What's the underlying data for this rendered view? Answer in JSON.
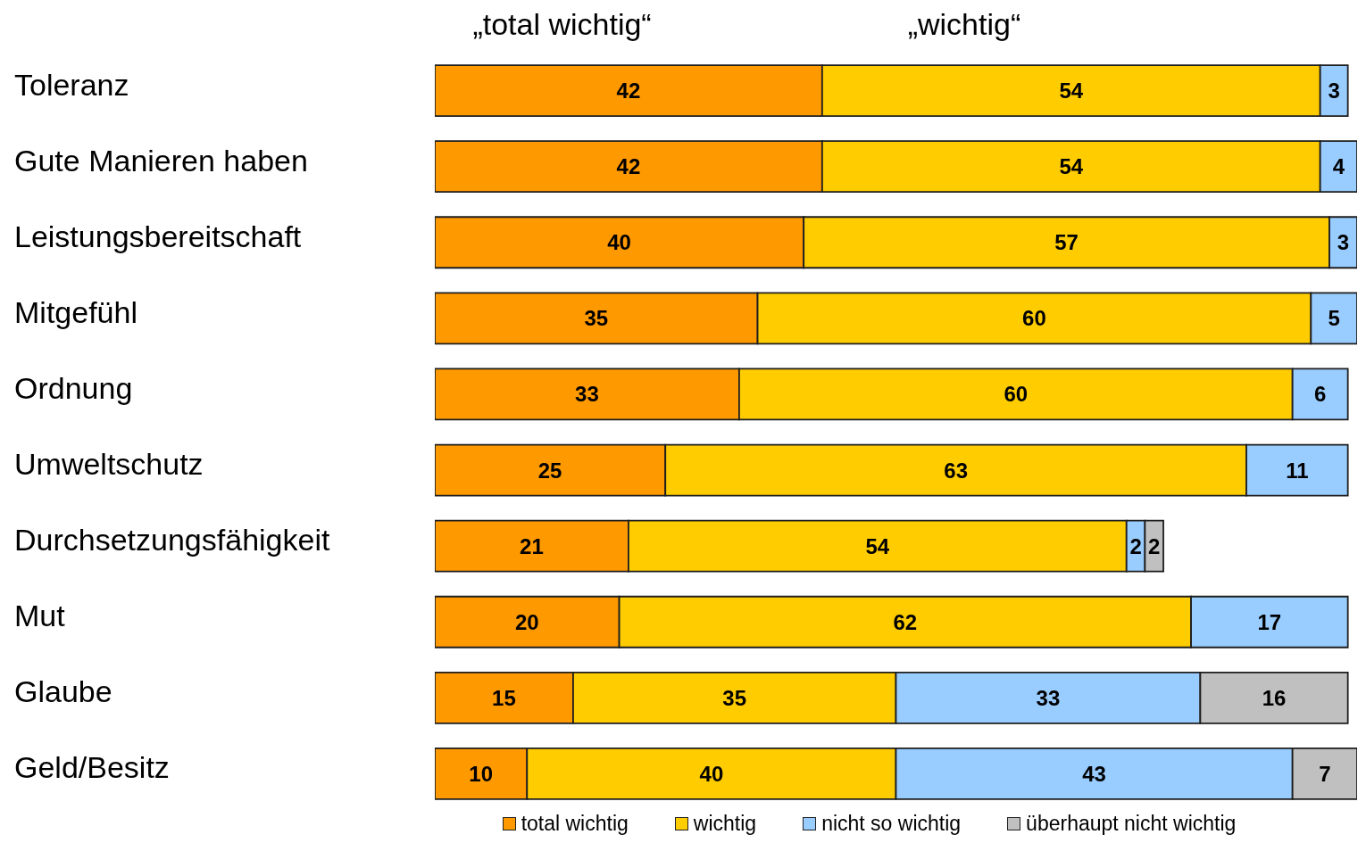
{
  "chart_data": {
    "type": "bar",
    "orientation": "horizontal",
    "stacked": true,
    "categories": [
      "Toleranz",
      "Gute Manieren haben",
      "Leistungsbereitschaft",
      "Mitgefühl",
      "Ordnung",
      "Umweltschutz",
      "Durchsetzungsfähigkeit",
      "Mut",
      "Glaube",
      "Geld/Besitz"
    ],
    "series": [
      {
        "name": "total wichtig",
        "color": "#ff9900",
        "values": [
          42,
          42,
          40,
          35,
          33,
          25,
          21,
          20,
          15,
          10
        ]
      },
      {
        "name": "wichtig",
        "color": "#ffcc00",
        "values": [
          54,
          54,
          57,
          60,
          60,
          63,
          54,
          62,
          35,
          40
        ]
      },
      {
        "name": "nicht so wichtig",
        "color": "#99ccff",
        "values": [
          3,
          4,
          3,
          5,
          6,
          11,
          2,
          17,
          33,
          43
        ]
      },
      {
        "name": "überhaupt nicht wichtig",
        "color": "#c0c0c0",
        "values": [
          null,
          null,
          null,
          null,
          null,
          null,
          2,
          null,
          16,
          7
        ]
      }
    ],
    "annotations": [
      "„total wichtig“",
      "„wichtig“"
    ],
    "data_labels": true,
    "legend": "bottom",
    "tick_labels": "y"
  }
}
